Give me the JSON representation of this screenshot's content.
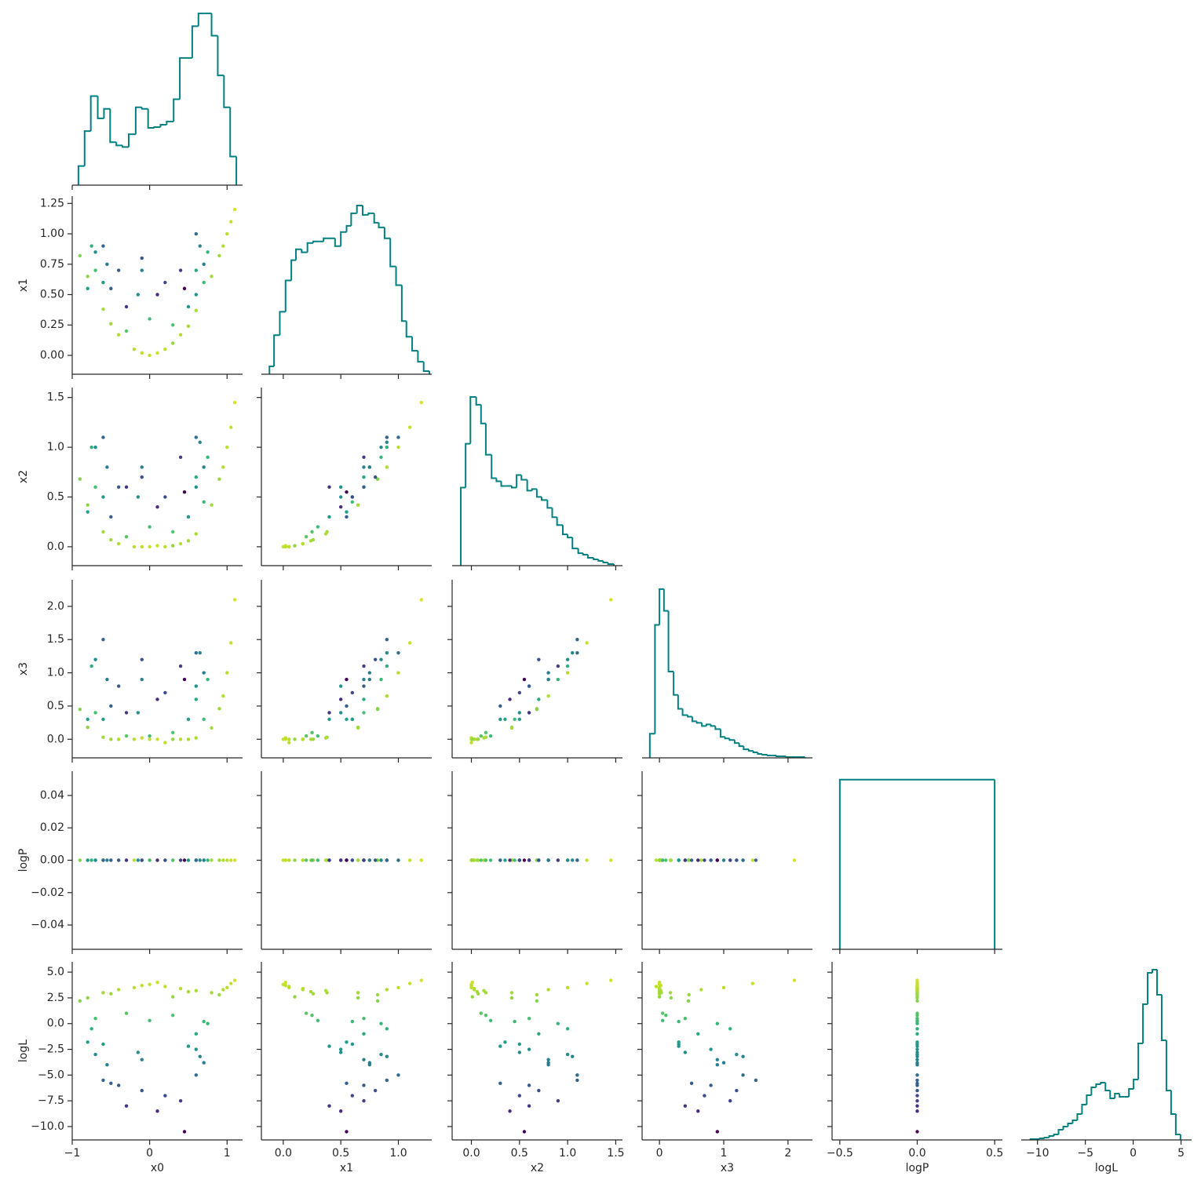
{
  "chart_data": {
    "type": "corner",
    "color": "#008080",
    "color_by": 5,
    "colormap": [
      "#440154",
      "#482878",
      "#3e4989",
      "#31688e",
      "#26828e",
      "#1f9e89",
      "#35b779",
      "#6ece58",
      "#b5de2b",
      "#fde725"
    ],
    "clim": [
      -10.5,
      5.2
    ],
    "variables": [
      {
        "name": "x0",
        "xlim": [
          -1,
          1.2
        ],
        "xticks": [
          {
            "value": -1,
            "label": "−1"
          },
          0,
          1
        ],
        "hist": {
          "bins": [
            -0.92,
            -0.84,
            -0.76,
            -0.67,
            -0.59,
            -0.51,
            -0.43,
            -0.35,
            -0.27,
            -0.18,
            -0.1,
            -0.02,
            0.06,
            0.14,
            0.22,
            0.31,
            0.39,
            0.47,
            0.55,
            0.63,
            0.71,
            0.8,
            0.88,
            0.96,
            1.04,
            1.12
          ],
          "counts": [
            24,
            68,
            112,
            84,
            96,
            54,
            50,
            48,
            64,
            98,
            96,
            72,
            73,
            76,
            80,
            108,
            160,
            160,
            200,
            216,
            216,
            188,
            138,
            98,
            36
          ],
          "ylim": [
            0,
            224
          ]
        },
        "samples": [
          -0.8,
          -0.6,
          -0.4,
          -0.2,
          0.0,
          0.2,
          0.4,
          0.6,
          0.8,
          1.0,
          1.1,
          0.9,
          -0.9,
          0.1,
          -0.1,
          0.5,
          -0.5,
          1.05,
          0.95,
          0.3,
          -0.7,
          0.7,
          -0.3,
          0.3,
          0.75,
          -0.75,
          0.0,
          0.6,
          -0.7,
          -0.6,
          0.65,
          0.6,
          -0.1,
          -0.15,
          0.7,
          -0.55,
          0.5,
          -0.8,
          -0.6,
          -0.4,
          -0.1,
          0.2,
          0.4,
          0.6,
          -0.3,
          0.1,
          -0.5,
          0.45
        ]
      },
      {
        "name": "x1",
        "xlim": [
          -0.19,
          1.29
        ],
        "ylim": [
          -0.155,
          1.31
        ],
        "xticks": [
          {
            "value": 0,
            "label": "0.0"
          },
          {
            "value": 0.5,
            "label": "0.5"
          },
          {
            "value": 1,
            "label": "1.0"
          }
        ],
        "yticks": [
          {
            "value": 0,
            "label": "0.00"
          },
          0.25,
          {
            "value": 0.5,
            "label": "0.50"
          },
          0.75,
          {
            "value": 1,
            "label": "1.00"
          },
          1.25
        ],
        "hist": {
          "bins": [
            -0.12,
            -0.08,
            -0.03,
            0.02,
            0.07,
            0.11,
            0.16,
            0.21,
            0.26,
            0.31,
            0.35,
            0.4,
            0.45,
            0.5,
            0.55,
            0.59,
            0.64,
            0.69,
            0.74,
            0.79,
            0.83,
            0.88,
            0.93,
            0.98,
            1.03,
            1.07,
            1.12,
            1.17,
            1.22,
            1.27
          ],
          "counts": [
            10,
            50,
            80,
            120,
            146,
            160,
            156,
            168,
            170,
            170,
            174,
            174,
            164,
            182,
            190,
            206,
            216,
            204,
            206,
            194,
            188,
            174,
            138,
            114,
            68,
            48,
            30,
            16,
            4
          ],
          "ylim": [
            0,
            228
          ]
        },
        "samples": [
          0.65,
          0.38,
          0.17,
          0.05,
          0.0,
          0.05,
          0.17,
          0.37,
          0.65,
          1.0,
          1.2,
          0.82,
          0.82,
          0.02,
          0.02,
          0.24,
          0.26,
          1.1,
          0.9,
          0.1,
          0.7,
          0.6,
          0.2,
          0.25,
          0.85,
          0.9,
          0.3,
          0.7,
          0.85,
          0.6,
          0.9,
          0.5,
          0.7,
          0.5,
          0.75,
          0.75,
          0.4,
          0.55,
          0.9,
          0.7,
          0.8,
          0.6,
          0.7,
          1.0,
          0.4,
          0.5,
          0.55,
          0.55
        ]
      },
      {
        "name": "x2",
        "xlim": [
          -0.2,
          1.57
        ],
        "ylim": [
          -0.19,
          1.6
        ],
        "xticks": [
          {
            "value": 0,
            "label": "0.0"
          },
          0.5,
          {
            "value": 1,
            "label": "1.0"
          },
          1.5
        ],
        "yticks": [
          {
            "value": 0,
            "label": "0.0"
          },
          0.5,
          {
            "value": 1,
            "label": "1.0"
          },
          1.5
        ],
        "hist": {
          "bins": [
            -0.11,
            -0.06,
            -0.01,
            0.05,
            0.1,
            0.15,
            0.21,
            0.26,
            0.31,
            0.36,
            0.42,
            0.47,
            0.52,
            0.58,
            0.63,
            0.68,
            0.73,
            0.79,
            0.84,
            0.89,
            0.95,
            1.0,
            1.05,
            1.11,
            1.16,
            1.21,
            1.27,
            1.32,
            1.37,
            1.42,
            1.48
          ],
          "counts": [
            100,
            156,
            216,
            206,
            182,
            142,
            112,
            108,
            102,
            102,
            100,
            116,
            110,
            96,
            98,
            88,
            84,
            74,
            62,
            52,
            40,
            36,
            22,
            16,
            14,
            10,
            8,
            6,
            4,
            2
          ],
          "ylim": [
            0,
            228
          ]
        },
        "samples": [
          0.42,
          0.15,
          0.03,
          0.0,
          0.0,
          0.0,
          0.03,
          0.13,
          0.42,
          1.0,
          1.45,
          0.68,
          0.68,
          0.01,
          0.0,
          0.06,
          0.07,
          1.2,
          0.8,
          0.01,
          0.6,
          0.45,
          0.1,
          0.15,
          0.9,
          1.0,
          0.2,
          0.7,
          1.0,
          0.5,
          1.05,
          0.6,
          0.8,
          0.5,
          0.8,
          0.8,
          0.3,
          0.35,
          1.1,
          0.6,
          0.7,
          0.5,
          0.9,
          1.1,
          0.6,
          0.4,
          0.3,
          0.55
        ]
      },
      {
        "name": "x3",
        "xlim": [
          -0.27,
          2.38
        ],
        "ylim": [
          -0.28,
          2.4
        ],
        "xticks": [
          0,
          1,
          2
        ],
        "yticks": [
          {
            "value": 0,
            "label": "0.0"
          },
          0.5,
          {
            "value": 1,
            "label": "1.0"
          },
          1.5,
          {
            "value": 2,
            "label": "2.0"
          }
        ],
        "hist": {
          "bins": [
            -0.15,
            -0.07,
            0.0,
            0.07,
            0.14,
            0.22,
            0.29,
            0.36,
            0.44,
            0.51,
            0.58,
            0.66,
            0.73,
            0.8,
            0.87,
            0.95,
            1.02,
            1.09,
            1.17,
            1.24,
            1.31,
            1.39,
            1.46,
            1.53,
            1.6,
            1.68,
            1.75,
            1.82,
            1.9,
            1.97,
            2.04,
            2.12,
            2.19,
            2.26
          ],
          "counts": [
            31,
            171,
            217,
            189,
            111,
            81,
            63,
            55,
            53,
            47,
            45,
            41,
            43,
            41,
            37,
            27,
            25,
            23,
            19,
            15,
            11,
            9,
            7,
            5,
            4,
            3,
            3,
            2,
            2,
            1,
            1,
            1,
            1
          ],
          "ylim": [
            0,
            229
          ]
        },
        "samples": [
          0.18,
          0.03,
          0.0,
          0.0,
          0.0,
          -0.05,
          0.0,
          0.02,
          0.17,
          1.0,
          2.1,
          0.46,
          0.45,
          0.0,
          0.02,
          0.0,
          0.0,
          1.45,
          0.65,
          0.0,
          0.4,
          0.3,
          0.05,
          0.1,
          0.9,
          1.1,
          0.05,
          0.6,
          1.2,
          0.3,
          1.3,
          0.8,
          0.9,
          0.4,
          1.0,
          0.9,
          0.3,
          0.3,
          1.5,
          0.8,
          1.2,
          0.7,
          1.1,
          1.3,
          0.4,
          0.6,
          0.5,
          0.9
        ]
      },
      {
        "name": "logP",
        "xlim": [
          -0.55,
          0.55
        ],
        "ylim": [
          -0.055,
          0.055
        ],
        "xticks": [
          {
            "value": -0.5,
            "label": "−0.5"
          },
          {
            "value": 0,
            "label": "0.0"
          },
          0.5
        ],
        "yticks": [
          {
            "value": -0.04,
            "label": "−0.04"
          },
          {
            "value": -0.02,
            "label": "−0.02"
          },
          {
            "value": 0,
            "label": "0.00"
          },
          0.02,
          0.04
        ],
        "hist": {
          "bins": [
            -0.5,
            0.5
          ],
          "counts": [
            100
          ],
          "ylim": [
            0,
            105
          ]
        },
        "samples": [
          0,
          0,
          0,
          0,
          0,
          0,
          0,
          0,
          0,
          0,
          0,
          0,
          0,
          0,
          0,
          0,
          0,
          0,
          0,
          0,
          0,
          0,
          0,
          0,
          0,
          0,
          0,
          0,
          0,
          0,
          0,
          0,
          0,
          0,
          0,
          0,
          0,
          0,
          0,
          0,
          0,
          0,
          0,
          0,
          0,
          0,
          0,
          0
        ]
      },
      {
        "name": "logL",
        "xlim": [
          -11.7,
          6.1
        ],
        "ylim": [
          -11.3,
          6.0
        ],
        "xticks": [
          {
            "value": -10,
            "label": "−10"
          },
          {
            "value": -5,
            "label": "−5"
          },
          0,
          5
        ],
        "yticks": [
          {
            "value": -10,
            "label": "−10.0"
          },
          {
            "value": -7.5,
            "label": "−7.5"
          },
          {
            "value": -5,
            "label": "−5.0"
          },
          {
            "value": -2.5,
            "label": "−2.5"
          },
          {
            "value": 0,
            "label": "0.0"
          },
          2.5,
          {
            "value": 5,
            "label": "5.0"
          }
        ],
        "hist": {
          "bins": [
            -10.74,
            -10.25,
            -9.76,
            -9.27,
            -8.78,
            -8.29,
            -7.8,
            -7.31,
            -6.82,
            -6.33,
            -5.84,
            -5.35,
            -4.86,
            -4.37,
            -3.88,
            -3.39,
            -2.9,
            -2.41,
            -1.92,
            -1.43,
            -0.94,
            -0.45,
            0.04,
            0.53,
            1.02,
            1.51,
            2.0,
            2.49,
            2.98,
            3.47,
            3.96,
            4.45,
            4.94
          ],
          "counts": [
            1,
            1,
            2,
            3,
            5,
            7,
            13,
            17,
            21,
            25,
            33,
            45,
            57,
            67,
            71,
            73,
            63,
            53,
            59,
            55,
            55,
            65,
            77,
            123,
            173,
            213,
            217,
            185,
            127,
            63,
            33,
            7
          ],
          "ylim": [
            0,
            227
          ]
        },
        "samples": [
          2.5,
          3.0,
          3.3,
          3.5,
          3.8,
          3.6,
          3.4,
          3.2,
          3.0,
          3.5,
          4.2,
          2.8,
          2.2,
          4.0,
          3.7,
          3.1,
          2.9,
          3.9,
          3.3,
          2.6,
          0.5,
          0.2,
          1.0,
          0.8,
          0.0,
          -0.5,
          0.3,
          -1.0,
          -3.0,
          -2.0,
          -3.2,
          -2.5,
          -3.5,
          -2.8,
          -3.8,
          -4.0,
          -2.2,
          -1.8,
          -5.5,
          -6.0,
          -6.5,
          -7.0,
          -7.5,
          -5.0,
          -8.0,
          -8.5,
          -5.8,
          -10.5
        ]
      }
    ]
  }
}
